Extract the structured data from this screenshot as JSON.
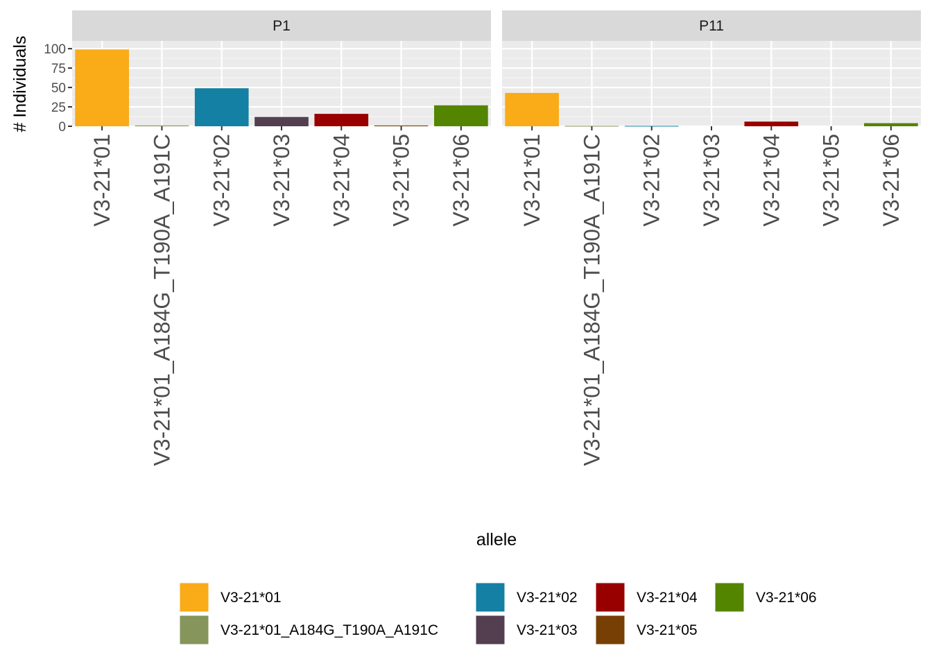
{
  "chart_data": {
    "type": "bar",
    "ylabel": "# Individuals",
    "xlabel": "allele",
    "ylim": [
      0,
      110
    ],
    "yticks": [
      0,
      25,
      50,
      75,
      100
    ],
    "grid": true,
    "legend_position": "bottom",
    "categories": [
      "V3-21*01",
      "V3-21*01_A184G_T190A_A191C",
      "V3-21*02",
      "V3-21*03",
      "V3-21*04",
      "V3-21*05",
      "V3-21*06"
    ],
    "colors": [
      "#F9AB18",
      "#86955B",
      "#1480A3",
      "#533F50",
      "#980000",
      "#783F04",
      "#548500"
    ],
    "panels": [
      {
        "name": "P1",
        "values": [
          99,
          1,
          49,
          12,
          16,
          1,
          27
        ]
      },
      {
        "name": "P11",
        "values": [
          43,
          0.5,
          0.5,
          0,
          6,
          0,
          4
        ]
      }
    ],
    "legend": {
      "title": "",
      "columns": [
        [
          "V3-21*01",
          "V3-21*01_A184G_T190A_A191C"
        ],
        [
          "V3-21*02",
          "V3-21*03"
        ],
        [
          "V3-21*04",
          "V3-21*05"
        ],
        [
          "V3-21*06"
        ]
      ]
    }
  }
}
